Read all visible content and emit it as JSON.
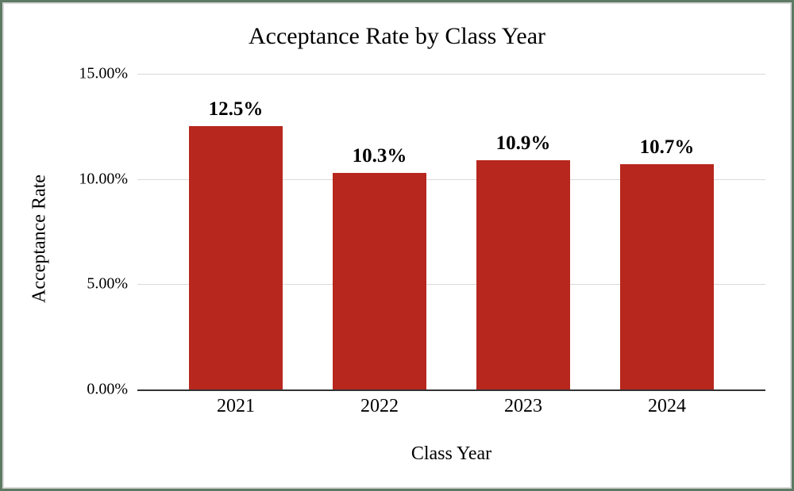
{
  "chart_data": {
    "type": "bar",
    "title": "Acceptance Rate by Class Year",
    "xlabel": "Class Year",
    "ylabel": "Acceptance Rate",
    "categories": [
      "2021",
      "2022",
      "2023",
      "2024"
    ],
    "values": [
      12.5,
      10.3,
      10.9,
      10.7
    ],
    "value_labels": [
      "12.5%",
      "10.3%",
      "10.9%",
      "10.7%"
    ],
    "ylim": [
      0,
      15
    ],
    "yticks": [
      {
        "value": 15,
        "label": "15.00%"
      },
      {
        "value": 10,
        "label": "10.00%"
      },
      {
        "value": 5,
        "label": "5.00%"
      },
      {
        "value": 0,
        "label": "0.00%"
      }
    ],
    "grid": true,
    "legend_position": "none",
    "bar_color": "#b7271d",
    "gridline_color": "#d9d9d9",
    "axis_line_color": "#333333",
    "text_color": "#000000"
  },
  "frame": {
    "outer_border_color": "#5e7a63",
    "inner_border_color": "#d8d8d8",
    "background_color": "#ffffff"
  }
}
